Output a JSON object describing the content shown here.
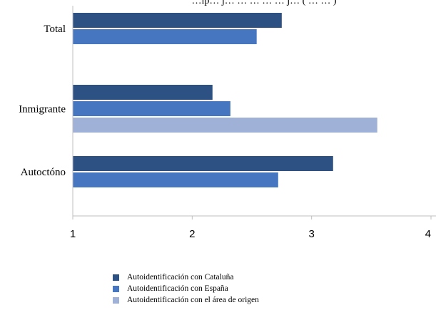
{
  "chart_data": {
    "type": "bar",
    "orientation": "horizontal",
    "title": "…lp… j… … … … … j… ( … … )",
    "categories": [
      "Total",
      "Inmigrante",
      "Autoctóno"
    ],
    "series": [
      {
        "name": "Autoidentificación con Cataluña",
        "color": "#2e5183",
        "values": [
          2.75,
          2.17,
          3.18
        ]
      },
      {
        "name": "Autoidentificación con España",
        "color": "#4576bf",
        "values": [
          2.54,
          2.32,
          2.72
        ]
      },
      {
        "name": "Autoidentificación con el área de origen",
        "color": "#9fb1d6",
        "values": [
          null,
          3.55,
          null
        ]
      }
    ],
    "xlim": [
      1,
      4
    ],
    "xticks": [
      "1",
      "2",
      "3",
      "4"
    ],
    "xlabel": "",
    "ylabel": "",
    "grid": false,
    "legend_position": "bottom"
  }
}
